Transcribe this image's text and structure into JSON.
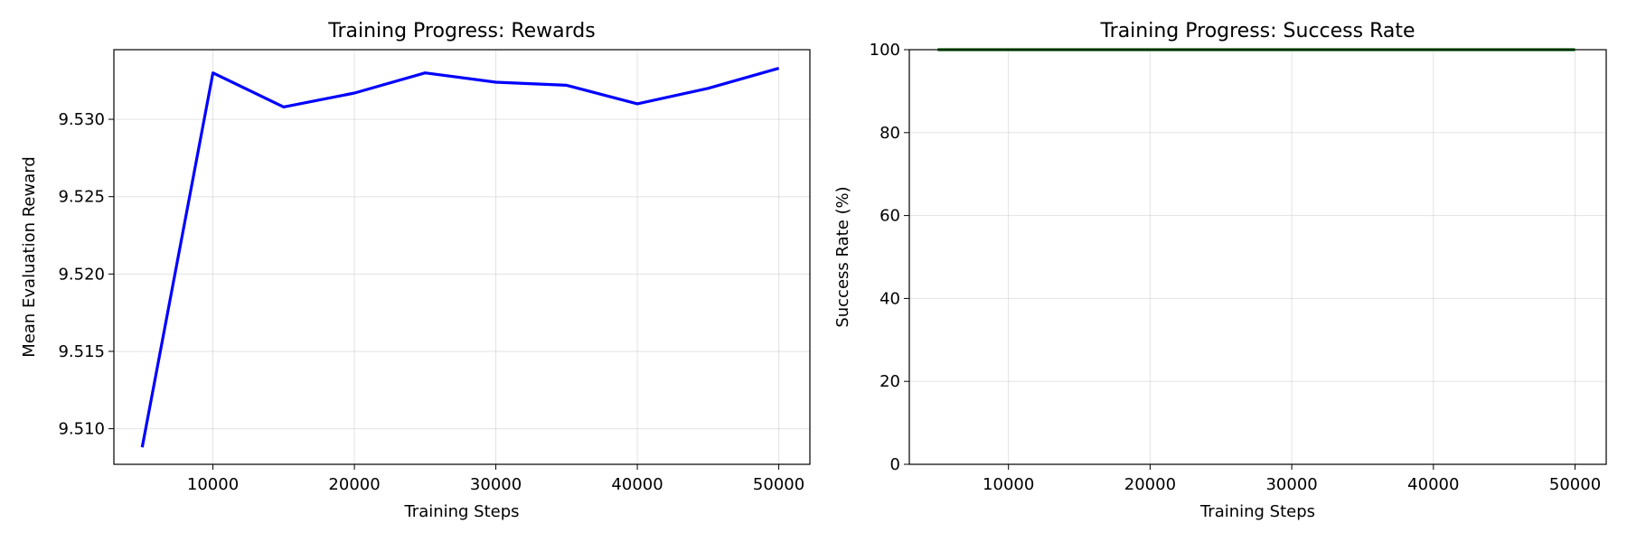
{
  "chart_data": [
    {
      "type": "line",
      "title": "Training Progress: Rewards",
      "xlabel": "Training Steps",
      "ylabel": "Mean Evaluation Reward",
      "x": [
        5000,
        10000,
        15000,
        20000,
        25000,
        30000,
        35000,
        40000,
        45000,
        50000
      ],
      "series": [
        {
          "values": [
            9.5088,
            9.533,
            9.5308,
            9.5317,
            9.533,
            9.5324,
            9.5322,
            9.531,
            9.532,
            9.5333
          ],
          "color": "#0000ff"
        }
      ],
      "xlim": [
        3000,
        52200
      ],
      "ylim": [
        9.5077,
        9.5345
      ],
      "xticks": [
        10000,
        20000,
        30000,
        40000,
        50000
      ],
      "xtick_labels": [
        "10000",
        "20000",
        "30000",
        "40000",
        "50000"
      ],
      "yticks": [
        9.51,
        9.515,
        9.52,
        9.525,
        9.53
      ],
      "ytick_labels": [
        "9.510",
        "9.515",
        "9.520",
        "9.525",
        "9.530"
      ],
      "grid": true
    },
    {
      "type": "line",
      "title": "Training Progress: Success Rate",
      "xlabel": "Training Steps",
      "ylabel": "Success Rate (%)",
      "x": [
        5000,
        10000,
        15000,
        20000,
        25000,
        30000,
        35000,
        40000,
        45000,
        50000
      ],
      "series": [
        {
          "values": [
            100,
            100,
            100,
            100,
            100,
            100,
            100,
            100,
            100,
            100
          ],
          "color": "#006400"
        }
      ],
      "xlim": [
        3000,
        52200
      ],
      "ylim": [
        0,
        100
      ],
      "xticks": [
        10000,
        20000,
        30000,
        40000,
        50000
      ],
      "xtick_labels": [
        "10000",
        "20000",
        "30000",
        "40000",
        "50000"
      ],
      "yticks": [
        0,
        20,
        40,
        60,
        80,
        100
      ],
      "ytick_labels": [
        "0",
        "20",
        "40",
        "60",
        "80",
        "100"
      ],
      "grid": true
    }
  ]
}
